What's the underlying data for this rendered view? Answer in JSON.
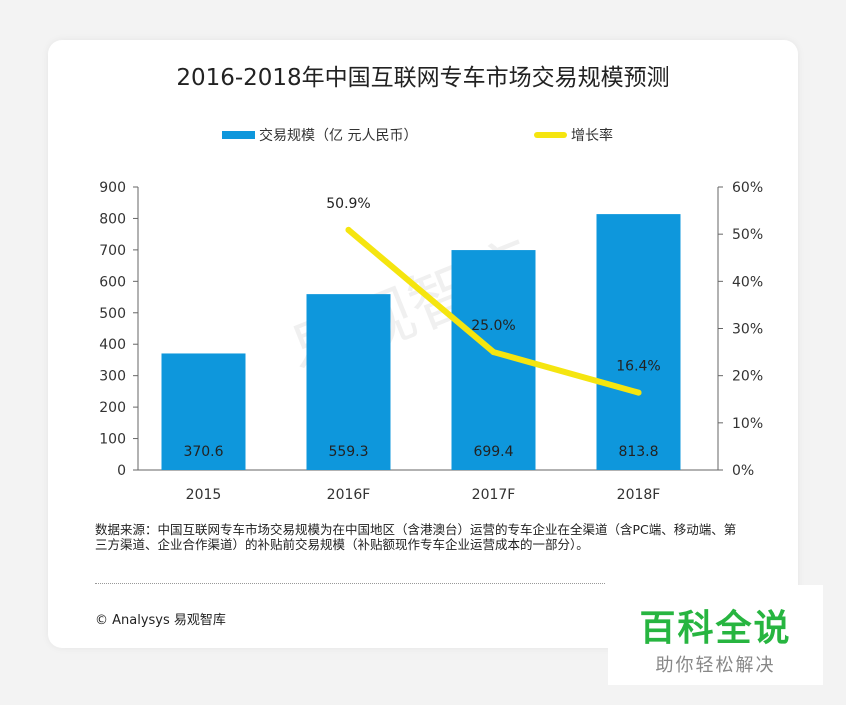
{
  "chart_data": {
    "type": "bar",
    "title": "2016-2018年中国互联网专车市场交易规模预测",
    "categories": [
      "2015",
      "2016F",
      "2017F",
      "2018F"
    ],
    "series": [
      {
        "name": "交易规模（亿 元人民币）",
        "type": "bar",
        "axis": "left",
        "values": [
          370.6,
          559.3,
          699.4,
          813.8
        ],
        "labels": [
          "370.6",
          "559.3",
          "699.4",
          "813.8"
        ],
        "color": "#0e97dc"
      },
      {
        "name": "增长率",
        "type": "line",
        "axis": "right",
        "values": [
          null,
          50.9,
          25.0,
          16.4
        ],
        "labels": [
          "",
          "50.9%",
          "25.0%",
          "16.4%"
        ],
        "color": "#f5e50f"
      }
    ],
    "ylim": [
      0,
      900
    ],
    "yticks": [
      "0",
      "100",
      "200",
      "300",
      "400",
      "500",
      "600",
      "700",
      "800",
      "900"
    ],
    "y2lim": [
      0,
      60
    ],
    "y2ticks": [
      "0%",
      "10%",
      "20%",
      "30%",
      "40%",
      "50%",
      "60%"
    ],
    "grid": false,
    "legend": "top"
  },
  "watermark": "易观智库",
  "note": "数据来源：中国互联网专车市场交易规模为在中国地区（含港澳台）运营的专车企业在全渠道（含PC端、移动端、第三方渠道、企业合作渠道）的补贴前交易规模（补贴额现作专车企业运营成本的一部分）。",
  "copyright": "© Analysys 易观智库",
  "badge": {
    "title": "百科全说",
    "subtitle": "助你轻松解决"
  }
}
